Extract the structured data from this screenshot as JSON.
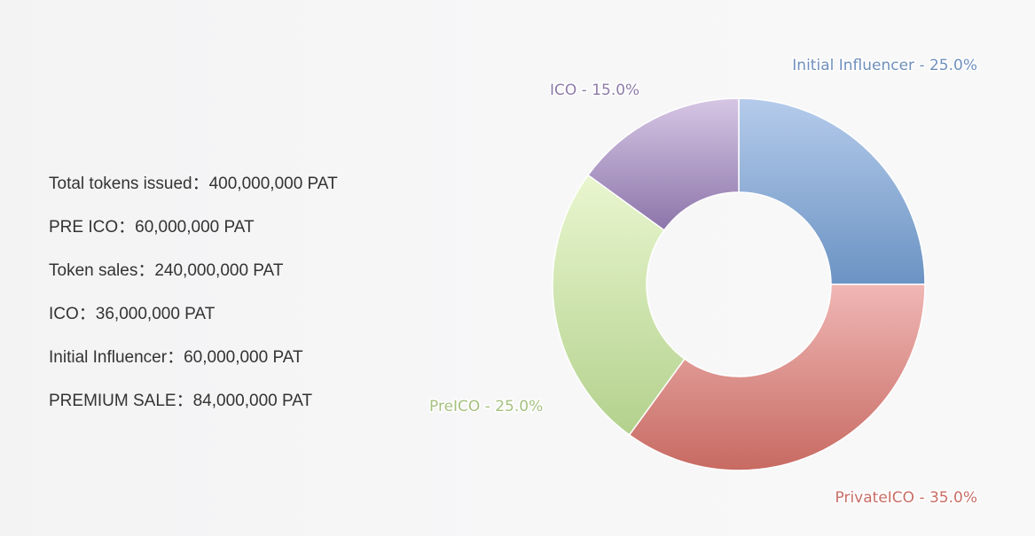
{
  "info": {
    "items": [
      {
        "label": "Total tokens issued",
        "sep": "：",
        "value": "400,000,000 PAT"
      },
      {
        "label": "PRE ICO",
        "sep": "：",
        "value": "60,000,000 PAT"
      },
      {
        "label": "Token sales",
        "sep": "：",
        "value": "240,000,000 PAT"
      },
      {
        "label": "ICO",
        "sep": "：",
        "value": "36,000,000 PAT"
      },
      {
        "label": "Initial Influencer",
        "sep": "：",
        "value": "60,000,000 PAT"
      },
      {
        "label": "PREMIUM SALE",
        "sep": "：",
        "value": "84,000,000 PAT"
      }
    ]
  },
  "chart_data": {
    "type": "pie",
    "variant": "donut",
    "slices": [
      {
        "name": "Initial Influencer",
        "value": 25.0,
        "label": "Initial Influencer - 25.0%",
        "color_top": "#b5cbeb",
        "color_bottom": "#6b93c3",
        "label_color": "#6e8fbb"
      },
      {
        "name": "PrivateICO",
        "value": 35.0,
        "label": "PrivateICO - 35.0%",
        "color_top": "#f0b7b5",
        "color_bottom": "#c76a62",
        "label_color": "#c86d66"
      },
      {
        "name": "PreICO",
        "value": 25.0,
        "label": "PreICO - 25.0%",
        "color_top": "#e9f6cf",
        "color_bottom": "#b3d18d",
        "label_color": "#a5c17f"
      },
      {
        "name": "ICO",
        "value": 15.0,
        "label": "ICO - 15.0%",
        "color_top": "#d6c6e4",
        "color_bottom": "#8c75aa",
        "label_color": "#8e7ba8"
      }
    ],
    "start_angle": "12 o'clock",
    "direction": "clockwise",
    "legend": "none"
  }
}
